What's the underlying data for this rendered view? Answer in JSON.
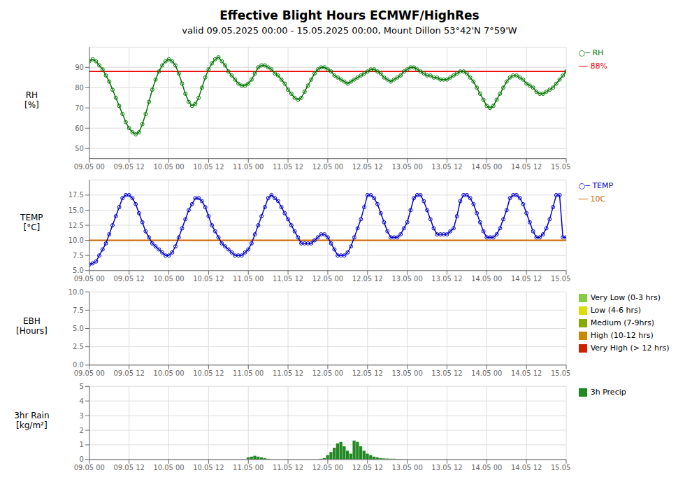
{
  "chart_data": [
    {
      "type": "line",
      "title": "Effective Blight Hours ECMWF/HighRes",
      "subtitle": "valid 09.05.2025 00:00 - 15.05.2025 00:00, Mount Dillon 53°42'N 7°59'W",
      "y_label": "RH\n[%]",
      "grid": true,
      "xlim": [
        0,
        144
      ],
      "xticks": [
        {
          "value": 0,
          "label": "09.05 00"
        },
        {
          "value": 12,
          "label": "09.05 12"
        },
        {
          "value": 24,
          "label": "10.05 00"
        },
        {
          "value": 36,
          "label": "10.05 12"
        },
        {
          "value": 48,
          "label": "11.05 00"
        },
        {
          "value": 60,
          "label": "11.05 12"
        },
        {
          "value": 72,
          "label": "12.05 00"
        },
        {
          "value": 84,
          "label": "12.05 12"
        },
        {
          "value": 96,
          "label": "13.05 00"
        },
        {
          "value": 108,
          "label": "13.05 12"
        },
        {
          "value": 120,
          "label": "14.05 00"
        },
        {
          "value": 132,
          "label": "14.05 12"
        },
        {
          "value": 144,
          "label": "15.05 00"
        }
      ],
      "ylim": [
        45,
        100
      ],
      "yticks": [
        50,
        60,
        70,
        80,
        90
      ],
      "x": [
        0,
        1,
        2,
        3,
        4,
        5,
        6,
        7,
        8,
        9,
        10,
        11,
        12,
        13,
        14,
        15,
        16,
        17,
        18,
        19,
        20,
        21,
        22,
        23,
        24,
        25,
        26,
        27,
        28,
        29,
        30,
        31,
        32,
        33,
        34,
        35,
        36,
        37,
        38,
        39,
        40,
        41,
        42,
        43,
        44,
        45,
        46,
        47,
        48,
        49,
        50,
        51,
        52,
        53,
        54,
        55,
        56,
        57,
        58,
        59,
        60,
        61,
        62,
        63,
        64,
        65,
        66,
        67,
        68,
        69,
        70,
        71,
        72,
        73,
        74,
        75,
        76,
        77,
        78,
        79,
        80,
        81,
        82,
        83,
        84,
        85,
        86,
        87,
        88,
        89,
        90,
        91,
        92,
        93,
        94,
        95,
        96,
        97,
        98,
        99,
        100,
        101,
        102,
        103,
        104,
        105,
        106,
        107,
        108,
        109,
        110,
        111,
        112,
        113,
        114,
        115,
        116,
        117,
        118,
        119,
        120,
        121,
        122,
        123,
        124,
        125,
        126,
        127,
        128,
        129,
        130,
        131,
        132,
        133,
        134,
        135,
        136,
        137,
        138,
        139,
        140,
        141,
        142,
        143,
        144
      ],
      "series": [
        {
          "name": "○─ RH",
          "color": "#007700",
          "marker": "circle",
          "values": [
            93,
            94,
            93,
            91,
            89,
            86,
            83,
            79,
            75,
            71,
            67,
            63,
            60,
            58,
            57,
            58,
            62,
            67,
            73,
            79,
            84,
            88,
            91,
            93,
            94,
            93,
            91,
            87,
            82,
            77,
            73,
            71,
            72,
            75,
            80,
            85,
            89,
            92,
            94,
            95,
            93,
            91,
            88,
            86,
            84,
            82,
            81,
            81,
            82,
            84,
            87,
            90,
            91,
            91,
            90,
            89,
            87,
            86,
            84,
            82,
            79,
            77,
            75,
            74,
            75,
            78,
            81,
            84,
            87,
            89,
            90,
            90,
            89,
            88,
            86,
            85,
            84,
            83,
            82,
            83,
            84,
            85,
            86,
            87,
            88,
            89,
            89,
            88,
            87,
            85,
            84,
            83,
            84,
            85,
            86,
            88,
            89,
            90,
            90,
            89,
            88,
            87,
            86,
            86,
            85,
            85,
            84,
            84,
            84,
            85,
            86,
            87,
            88,
            88,
            87,
            85,
            83,
            80,
            77,
            74,
            71,
            70,
            71,
            74,
            77,
            80,
            83,
            85,
            86,
            86,
            85,
            84,
            82,
            81,
            80,
            78,
            77,
            77,
            78,
            79,
            80,
            82,
            84,
            86,
            88
          ]
        }
      ],
      "reference_lines": [
        {
          "value": 88,
          "label": "── 88%",
          "color": "#ee0000"
        }
      ]
    },
    {
      "type": "line",
      "y_label": "TEMP\n[°C]",
      "grid": true,
      "xlim": [
        0,
        144
      ],
      "xticks": [
        {
          "value": 0,
          "label": "09.05 00"
        },
        {
          "value": 12,
          "label": "09.05 12"
        },
        {
          "value": 24,
          "label": "10.05 00"
        },
        {
          "value": 36,
          "label": "10.05 12"
        },
        {
          "value": 48,
          "label": "11.05 00"
        },
        {
          "value": 60,
          "label": "11.05 12"
        },
        {
          "value": 72,
          "label": "12.05 00"
        },
        {
          "value": 84,
          "label": "12.05 12"
        },
        {
          "value": 96,
          "label": "13.05 00"
        },
        {
          "value": 108,
          "label": "13.05 12"
        },
        {
          "value": 120,
          "label": "14.05 00"
        },
        {
          "value": 132,
          "label": "14.05 12"
        },
        {
          "value": 144,
          "label": "15.05 00"
        }
      ],
      "ylim": [
        5.0,
        20.0
      ],
      "yticks": [
        {
          "value": 5.0,
          "label": "5.0"
        },
        {
          "value": 7.5,
          "label": "7.5"
        },
        {
          "value": 10.0,
          "label": "10.0"
        },
        {
          "value": 12.5,
          "label": "12.5"
        },
        {
          "value": 15.0,
          "label": "15.0"
        },
        {
          "value": 17.5,
          "label": "17.5"
        }
      ],
      "x": [
        0,
        1,
        2,
        3,
        4,
        5,
        6,
        7,
        8,
        9,
        10,
        11,
        12,
        13,
        14,
        15,
        16,
        17,
        18,
        19,
        20,
        21,
        22,
        23,
        24,
        25,
        26,
        27,
        28,
        29,
        30,
        31,
        32,
        33,
        34,
        35,
        36,
        37,
        38,
        39,
        40,
        41,
        42,
        43,
        44,
        45,
        46,
        47,
        48,
        49,
        50,
        51,
        52,
        53,
        54,
        55,
        56,
        57,
        58,
        59,
        60,
        61,
        62,
        63,
        64,
        65,
        66,
        67,
        68,
        69,
        70,
        71,
        72,
        73,
        74,
        75,
        76,
        77,
        78,
        79,
        80,
        81,
        82,
        83,
        84,
        85,
        86,
        87,
        88,
        89,
        90,
        91,
        92,
        93,
        94,
        95,
        96,
        97,
        98,
        99,
        100,
        101,
        102,
        103,
        104,
        105,
        106,
        107,
        108,
        109,
        110,
        111,
        112,
        113,
        114,
        115,
        116,
        117,
        118,
        119,
        120,
        121,
        122,
        123,
        124,
        125,
        126,
        127,
        128,
        129,
        130,
        131,
        132,
        133,
        134,
        135,
        136,
        137,
        138,
        139,
        140,
        141,
        142,
        143,
        144
      ],
      "series": [
        {
          "name": "○─ TEMP",
          "color": "#0000cc",
          "marker": "circle",
          "values": [
            6.0,
            6.2,
            6.5,
            7.5,
            8.5,
            9.5,
            11.0,
            12.5,
            14.0,
            15.5,
            17.0,
            17.5,
            17.5,
            17.0,
            16.0,
            14.5,
            13.0,
            11.5,
            10.5,
            9.5,
            9.0,
            8.5,
            8.0,
            7.5,
            7.5,
            8.0,
            9.0,
            10.5,
            12.0,
            13.5,
            15.0,
            16.0,
            17.0,
            17.0,
            16.5,
            15.5,
            14.0,
            12.5,
            11.5,
            10.5,
            9.5,
            9.0,
            8.5,
            8.0,
            7.5,
            7.5,
            7.5,
            8.0,
            8.5,
            9.5,
            11.0,
            12.5,
            14.0,
            15.5,
            17.0,
            17.5,
            17.0,
            16.5,
            15.5,
            14.5,
            13.5,
            12.5,
            11.5,
            10.5,
            9.5,
            9.5,
            9.5,
            9.5,
            10.0,
            10.5,
            11.0,
            11.0,
            10.5,
            9.5,
            8.5,
            7.5,
            7.5,
            7.5,
            8.0,
            9.0,
            10.5,
            12.0,
            13.5,
            15.5,
            17.5,
            17.5,
            17.0,
            16.0,
            14.5,
            13.0,
            11.5,
            10.5,
            10.5,
            10.5,
            11.0,
            12.0,
            13.0,
            15.0,
            17.0,
            17.5,
            17.5,
            16.5,
            15.0,
            13.5,
            12.0,
            11.0,
            11.0,
            11.0,
            11.0,
            11.5,
            12.0,
            14.0,
            16.5,
            17.5,
            17.5,
            17.0,
            16.0,
            14.5,
            13.0,
            11.5,
            10.5,
            10.5,
            10.5,
            11.0,
            12.0,
            13.5,
            15.0,
            17.0,
            17.5,
            17.5,
            17.0,
            16.0,
            14.5,
            13.0,
            11.5,
            10.5,
            10.5,
            11.0,
            12.0,
            13.5,
            15.5,
            17.5,
            17.5,
            10.5,
            10.5
          ]
        }
      ],
      "reference_lines": [
        {
          "value": 10,
          "label": "── 10C",
          "color": "#cc6600"
        }
      ]
    },
    {
      "type": "bar",
      "y_label": "EBH\n[Hours]",
      "grid": true,
      "xlim": [
        0,
        144
      ],
      "xticks": [
        {
          "value": 0,
          "label": "09.05 00"
        },
        {
          "value": 12,
          "label": "09.05 12"
        },
        {
          "value": 24,
          "label": "10.05 00"
        },
        {
          "value": 36,
          "label": "10.05 12"
        },
        {
          "value": 48,
          "label": "11.05 00"
        },
        {
          "value": 60,
          "label": "11.05 12"
        },
        {
          "value": 72,
          "label": "12.05 00"
        },
        {
          "value": 84,
          "label": "12.05 12"
        },
        {
          "value": 96,
          "label": "13.05 00"
        },
        {
          "value": 108,
          "label": "13.05 12"
        },
        {
          "value": 120,
          "label": "14.05 00"
        },
        {
          "value": 132,
          "label": "14.05 12"
        },
        {
          "value": 144,
          "label": "15.05 00"
        }
      ],
      "ylim": [
        0,
        10
      ],
      "yticks": [
        {
          "value": 0.0,
          "label": "0.0"
        },
        {
          "value": 2.5,
          "label": "2.5"
        },
        {
          "value": 5.0,
          "label": "5.0"
        },
        {
          "value": 7.5,
          "label": "7.5"
        },
        {
          "value": 10.0,
          "label": "10.0"
        }
      ],
      "x": [],
      "series": [
        {
          "name": "Very Low (0-3 hrs)",
          "color": "#88cc44",
          "values": []
        },
        {
          "name": "Low (4-6 hrs)",
          "color": "#dddd00",
          "values": []
        },
        {
          "name": "Medium (7-9hrs)",
          "color": "#88aa00",
          "values": []
        },
        {
          "name": "High (10-12 hrs)",
          "color": "#cc8800",
          "values": []
        },
        {
          "name": "Very High (> 12 hrs)",
          "color": "#cc2200",
          "values": []
        }
      ]
    },
    {
      "type": "bar",
      "y_label": "3hr Rain\n[kg/m²]",
      "grid": true,
      "xlim": [
        0,
        144
      ],
      "xticks": [
        {
          "value": 0,
          "label": "09.05 00"
        },
        {
          "value": 12,
          "label": "09.05 12"
        },
        {
          "value": 24,
          "label": "10.05 00"
        },
        {
          "value": 36,
          "label": "10.05 12"
        },
        {
          "value": 48,
          "label": "11.05 00"
        },
        {
          "value": 60,
          "label": "11.05 12"
        },
        {
          "value": 72,
          "label": "12.05 00"
        },
        {
          "value": 84,
          "label": "12.05 12"
        },
        {
          "value": 96,
          "label": "13.05 00"
        },
        {
          "value": 108,
          "label": "13.05 12"
        },
        {
          "value": 120,
          "label": "14.05 00"
        },
        {
          "value": 132,
          "label": "14.05 12"
        },
        {
          "value": 144,
          "label": "15.05 00"
        }
      ],
      "ylim": [
        0,
        5
      ],
      "yticks": [
        0,
        1,
        2,
        3,
        4,
        5
      ],
      "x": [
        48,
        49,
        50,
        51,
        52,
        53,
        54,
        70,
        71,
        72,
        73,
        74,
        75,
        76,
        77,
        78,
        79,
        80,
        81,
        82,
        83,
        84,
        85,
        86,
        87,
        88,
        89,
        90,
        91,
        92,
        93,
        94,
        95
      ],
      "series": [
        {
          "name": "3h Precip",
          "color": "#228822",
          "values": [
            0.15,
            0.2,
            0.25,
            0.2,
            0.15,
            0.1,
            0.05,
            0.05,
            0.1,
            0.3,
            0.5,
            0.8,
            1.1,
            1.2,
            0.9,
            0.6,
            0.4,
            1.3,
            1.2,
            0.9,
            0.6,
            0.4,
            0.3,
            0.2,
            0.15,
            0.1,
            0.08,
            0.06,
            0.05,
            0.05,
            0.04,
            0.03,
            0.02
          ]
        }
      ]
    }
  ]
}
